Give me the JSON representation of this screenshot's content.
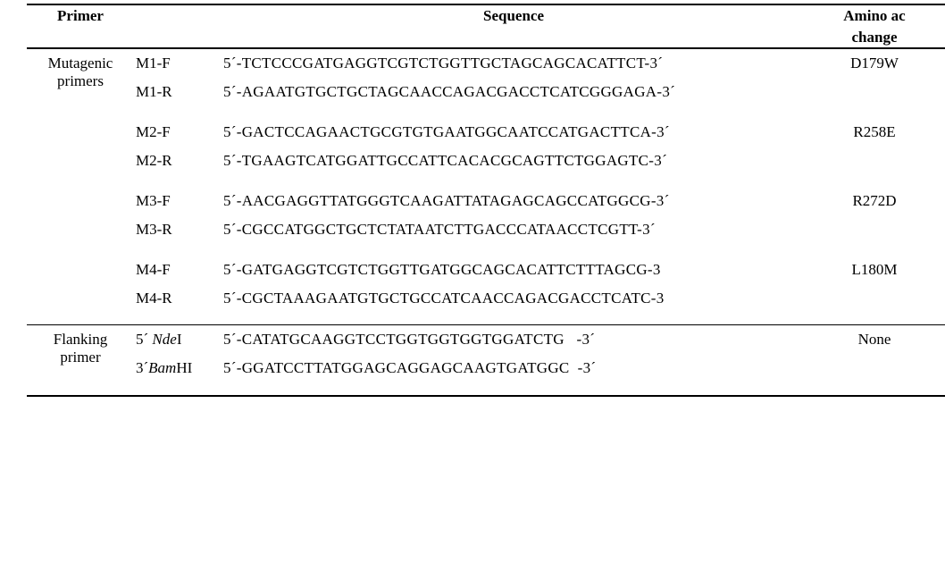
{
  "columns": {
    "primer": "Primer",
    "sequence": "Sequence",
    "amino1": "Amino ac",
    "amino2": "change"
  },
  "groups": [
    {
      "label_lines": [
        "Mutagenic",
        "primers"
      ],
      "pairs": [
        {
          "amino": "D179W",
          "f_name": "M1-F",
          "f_seq": "5´-TCTCCCGATGAGGTCGTCTGGTTGCTAGCAGCACATTCT-3´",
          "r_name": "M1-R",
          "r_seq": "5´-AGAATGTGCTGCTAGCAACCAGACGACCTCATCGGGAGA-3´"
        },
        {
          "amino": "R258E",
          "f_name": "M2-F",
          "f_seq": "5´-GACTCCAGAACTGCGTGTGAATGGCAATCCATGACTTCA-3´",
          "r_name": "M2-R",
          "r_seq": "5´-TGAAGTCATGGATTGCCATTCACACGCAGTTCTGGAGTC-3´"
        },
        {
          "amino": "R272D",
          "f_name": "M3-F",
          "f_seq": "5´-AACGAGGTTATGGGTCAAGATTATAGAGCAGCCATGGCG-3´",
          "r_name": "M3-R",
          "r_seq": "5´-CGCCATGGCTGCTCTATAATCTTGACCCATAACCTCGTT-3´"
        },
        {
          "amino": "L180M",
          "f_name": "M4-F",
          "f_seq": "5´-GATGAGGTCGTCTGGTTGATGGCAGCACATTCTTTAGCG-3",
          "r_name": "M4-R",
          "r_seq": "5´-CGCTAAAGAATGTGCTGCCATCAACCAGACGACCTCATC-3"
        }
      ]
    },
    {
      "label_lines": [
        "Flanking",
        "primer"
      ],
      "pairs": [
        {
          "amino": "None",
          "f_name_pre": "5´ ",
          "f_name_it": "Nde",
          "f_name_post": "I",
          "f_seq": "5´-CATATGCAAGGTCCTGGTGGTGGTGGATCTG   -3´",
          "r_name_pre": "3´",
          "r_name_it": "Bam",
          "r_name_post": "HI",
          "r_seq": "5´-GGATCCTTATGGAGCAGGAGCAAGTGATGGC  -3´"
        }
      ]
    }
  ]
}
